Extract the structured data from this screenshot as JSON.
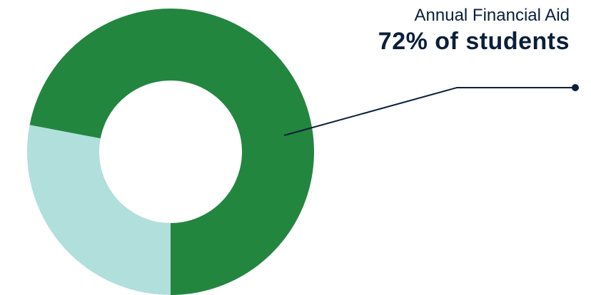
{
  "chart_data": {
    "type": "pie",
    "donut": true,
    "slices": [
      {
        "label": "Annual Financial Aid",
        "value": 72,
        "color": "#23863f"
      },
      {
        "label": "",
        "value": 28,
        "color": "#b0dfdc"
      }
    ],
    "annotation": {
      "title": "Annual Financial Aid",
      "value_text": "72% of students"
    }
  },
  "colors": {
    "leader_line": "#0b1f3a",
    "background": "#ffffff"
  }
}
